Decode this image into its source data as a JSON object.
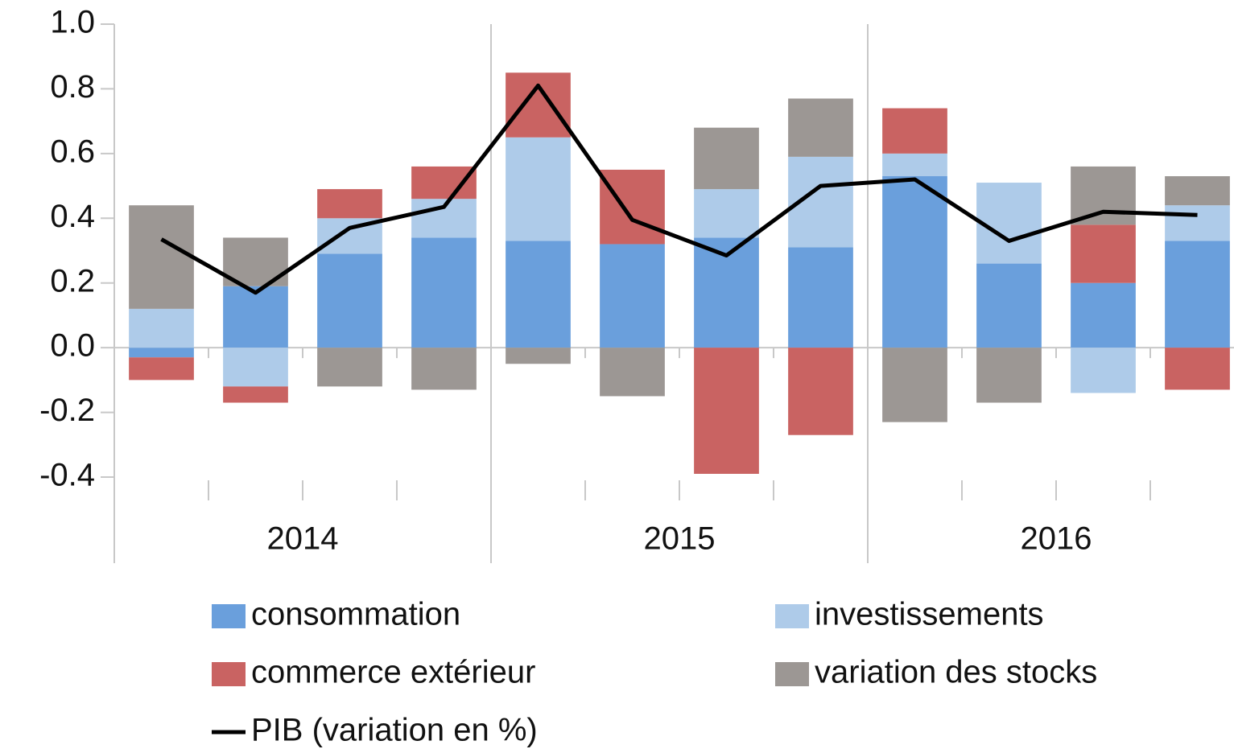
{
  "chart_data": {
    "type": "bar",
    "stacked": true,
    "categories": [
      null,
      null,
      null,
      null,
      null,
      null,
      null,
      null,
      null,
      null,
      null,
      null
    ],
    "groups": [
      "2014",
      "2015",
      "2016"
    ],
    "series": [
      {
        "name": "consommation",
        "color": "#6a9fdc",
        "values": [
          -0.03,
          0.19,
          0.29,
          0.34,
          0.33,
          0.32,
          0.34,
          0.31,
          0.53,
          0.26,
          0.2,
          0.33
        ]
      },
      {
        "name": "investissements",
        "color": "#aecbe9",
        "values": [
          0.12,
          -0.12,
          0.11,
          0.12,
          0.32,
          0,
          0.15,
          0.28,
          0.07,
          0.25,
          -0.14,
          0.11
        ]
      },
      {
        "name": "commerce extérieur",
        "color": "#c96362",
        "values": [
          -0.07,
          -0.05,
          0.09,
          0.1,
          0.2,
          0.23,
          -0.39,
          -0.27,
          0.14,
          0,
          0.18,
          -0.13
        ]
      },
      {
        "name": "variation des stocks",
        "color": "#9c9794",
        "values": [
          0.32,
          0.15,
          -0.12,
          -0.13,
          -0.05,
          -0.15,
          0.19,
          0.18,
          -0.23,
          -0.17,
          0.18,
          0.09
        ]
      },
      {
        "name": "PIB (variation en %)",
        "color": "#000000",
        "type": "line",
        "values": [
          0.335,
          0.17,
          0.37,
          0.435,
          0.81,
          0.395,
          0.285,
          0.5,
          0.52,
          0.33,
          0.42,
          0.41
        ]
      }
    ],
    "ylim": [
      -0.4,
      1.0
    ],
    "yticks": [
      {
        "value": 1.0,
        "label": "1.0"
      },
      0.8,
      0.6,
      0.4,
      0.2,
      {
        "value": 0,
        "label": "0.0"
      },
      -0.2,
      -0.4
    ],
    "grid": false
  }
}
